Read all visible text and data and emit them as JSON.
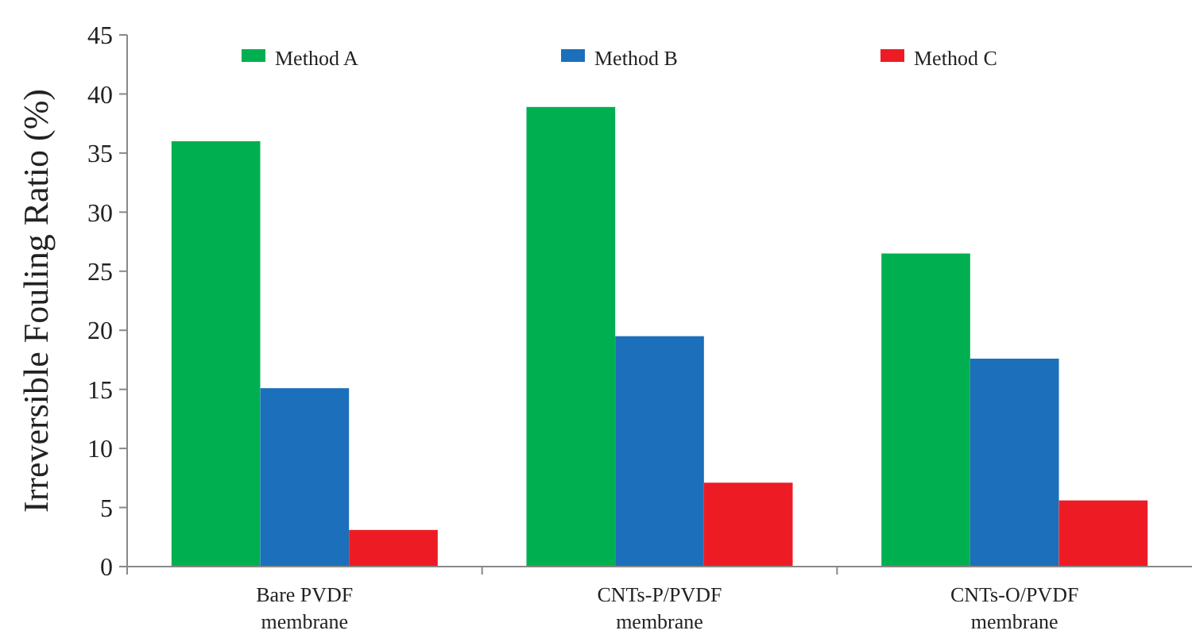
{
  "chart_data": {
    "type": "bar",
    "ylabel": "Irreversible Fouling Ratio (%)",
    "categories": [
      "Bare PVDF membrane",
      "CNTs-P/PVDF membrane",
      "CNTs-O/PVDF membrane"
    ],
    "series": [
      {
        "name": "Method A",
        "color": "#00b050",
        "values": [
          36.0,
          38.9,
          26.5
        ]
      },
      {
        "name": "Method B",
        "color": "#1c6fba",
        "values": [
          15.1,
          19.5,
          17.6
        ]
      },
      {
        "name": "Method C",
        "color": "#ed1c24",
        "values": [
          3.1,
          7.1,
          5.6
        ]
      }
    ],
    "ylim": [
      0,
      45
    ],
    "yticks": [
      0,
      5,
      10,
      15,
      20,
      25,
      30,
      35,
      40,
      45
    ],
    "grid": false,
    "legend": "top"
  }
}
